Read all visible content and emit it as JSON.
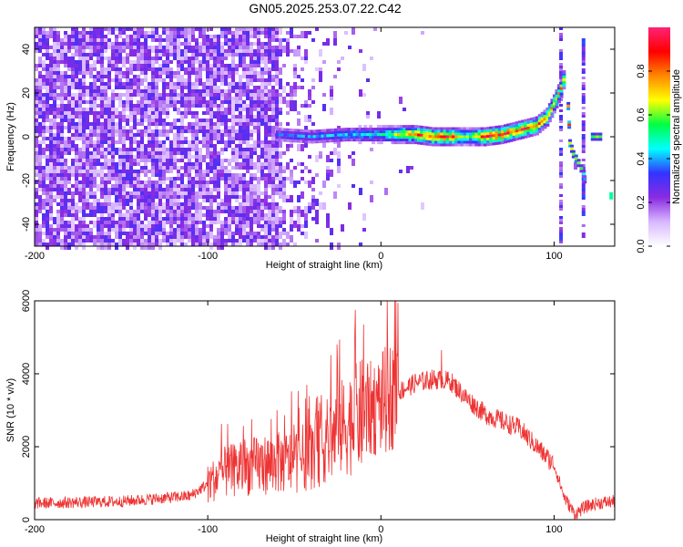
{
  "title": "GN05.2025.253.07.22.C42",
  "chart_data": [
    {
      "type": "heatmap",
      "name": "spectrogram",
      "xlabel": "Height of straight line (km)",
      "ylabel": "Frequency (Hz)",
      "xlim": [
        -200,
        135
      ],
      "ylim": [
        -50,
        50
      ],
      "xticks": [
        -200,
        -100,
        0,
        100
      ],
      "yticks": [
        -40,
        -20,
        0,
        20,
        40
      ],
      "colorbar": {
        "label": "Normalized spectral amplitude",
        "range": [
          0,
          1
        ],
        "ticks": [
          0.0,
          0.2,
          0.4,
          0.6,
          0.8
        ],
        "colors": [
          "#ffffff",
          "#d8b8ff",
          "#8a2be2",
          "#3333ff",
          "#00ffff",
          "#00ff44",
          "#ffff00",
          "#ff8800",
          "#ff0000",
          "#ff2277"
        ]
      },
      "noise_region_x": [
        -200,
        -60
      ],
      "main_track": [
        {
          "x": -60,
          "f": 1,
          "amp": 0.35
        },
        {
          "x": -40,
          "f": 0,
          "amp": 0.4
        },
        {
          "x": -20,
          "f": 1,
          "amp": 0.45
        },
        {
          "x": 0,
          "f": 1,
          "amp": 0.5
        },
        {
          "x": 10,
          "f": 1,
          "amp": 0.7
        },
        {
          "x": 20,
          "f": 1,
          "amp": 0.9
        },
        {
          "x": 30,
          "f": 0,
          "amp": 0.95
        },
        {
          "x": 40,
          "f": 0,
          "amp": 0.95
        },
        {
          "x": 50,
          "f": 0,
          "amp": 0.6
        },
        {
          "x": 60,
          "f": 0,
          "amp": 0.95
        },
        {
          "x": 70,
          "f": 1,
          "amp": 0.95
        },
        {
          "x": 80,
          "f": 3,
          "amp": 0.95
        },
        {
          "x": 90,
          "f": 5,
          "amp": 0.9
        },
        {
          "x": 96,
          "f": 9,
          "amp": 0.85
        },
        {
          "x": 100,
          "f": 15,
          "amp": 0.8
        },
        {
          "x": 104,
          "f": 22,
          "amp": 0.8
        },
        {
          "x": 107,
          "f": 30,
          "amp": 0.85
        }
      ],
      "secondary_track": [
        {
          "x": 108,
          "f": 14,
          "amp": 0.8
        },
        {
          "x": 109,
          "f": -3,
          "amp": 0.85
        },
        {
          "x": 111,
          "f": -8,
          "amp": 0.7
        },
        {
          "x": 114,
          "f": -12,
          "amp": 0.7
        },
        {
          "x": 117,
          "f": -17,
          "amp": 0.5
        },
        {
          "x": 118,
          "f": -22,
          "amp": 0.4
        },
        {
          "x": 122,
          "f": 0,
          "amp": 0.6
        },
        {
          "x": 128,
          "f": 0,
          "amp": 0.6
        },
        {
          "x": 133,
          "f": -27,
          "amp": 0.5
        }
      ],
      "vertical_stripes_x": [
        104,
        117
      ]
    },
    {
      "type": "line",
      "name": "snr",
      "xlabel": "Height of straight line (km)",
      "ylabel": "SNR (10 * v/v)",
      "xlim": [
        -200,
        135
      ],
      "ylim": [
        0,
        6000
      ],
      "xticks": [
        -200,
        -100,
        0,
        100
      ],
      "yticks": [
        0,
        2000,
        4000,
        6000
      ],
      "color": "#ee3333",
      "envelope": [
        {
          "x": -200,
          "y": 450
        },
        {
          "x": -150,
          "y": 500
        },
        {
          "x": -110,
          "y": 650
        },
        {
          "x": -90,
          "y": 1300
        },
        {
          "x": -70,
          "y": 1500
        },
        {
          "x": -50,
          "y": 1600
        },
        {
          "x": -40,
          "y": 1800
        },
        {
          "x": -30,
          "y": 2200
        },
        {
          "x": -20,
          "y": 2600
        },
        {
          "x": -10,
          "y": 2900
        },
        {
          "x": 0,
          "y": 3200
        },
        {
          "x": 10,
          "y": 3500
        },
        {
          "x": 20,
          "y": 3750
        },
        {
          "x": 30,
          "y": 3850
        },
        {
          "x": 40,
          "y": 3800
        },
        {
          "x": 50,
          "y": 3300
        },
        {
          "x": 60,
          "y": 2900
        },
        {
          "x": 70,
          "y": 2700
        },
        {
          "x": 80,
          "y": 2500
        },
        {
          "x": 90,
          "y": 2000
        },
        {
          "x": 100,
          "y": 1500
        },
        {
          "x": 106,
          "y": 600
        },
        {
          "x": 112,
          "y": 150
        },
        {
          "x": 118,
          "y": 350
        },
        {
          "x": 125,
          "y": 450
        },
        {
          "x": 135,
          "y": 500
        }
      ],
      "peaks": [
        {
          "x": -60,
          "y": 3000
        },
        {
          "x": -25,
          "y": 4300
        },
        {
          "x": -15,
          "y": 5200
        },
        {
          "x": -10,
          "y": 5350
        },
        {
          "x": 8,
          "y": 6000
        },
        {
          "x": 35,
          "y": 4650
        }
      ]
    }
  ]
}
